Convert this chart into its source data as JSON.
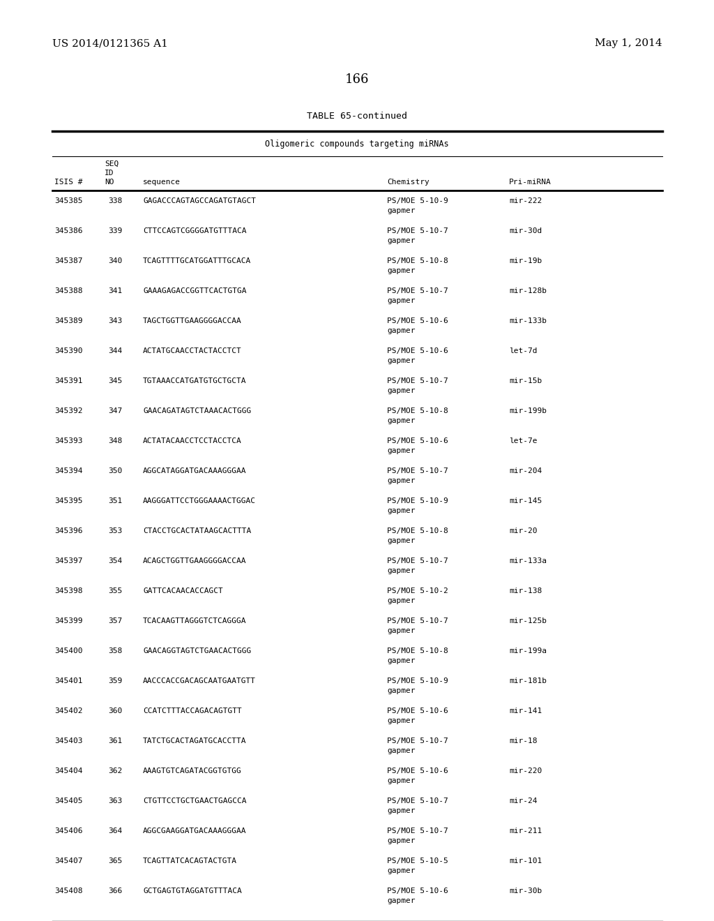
{
  "patent_number": "US 2014/0121365 A1",
  "patent_date": "May 1, 2014",
  "page_number": "166",
  "table_title": "TABLE 65-continued",
  "table_subtitle": "Oligomeric compounds targeting miRNAs",
  "rows": [
    [
      "345385",
      "338",
      "GAGACCCAGTAGCCAGATGTAGCT",
      "PS/MOE 5-10-9",
      "gapmer",
      "mir-222"
    ],
    [
      "345386",
      "339",
      "CTTCCAGTCGGGGATGTTTACA",
      "PS/MOE 5-10-7",
      "gapmer",
      "mir-30d"
    ],
    [
      "345387",
      "340",
      "TCAGTTTTGCATGGATTTGCACA",
      "PS/MOE 5-10-8",
      "gapmer",
      "mir-19b"
    ],
    [
      "345388",
      "341",
      "GAAAGAGACCGGTTCACTGTGA",
      "PS/MOE 5-10-7",
      "gapmer",
      "mir-128b"
    ],
    [
      "345389",
      "343",
      "TAGCTGGTTGAAGGGGACCAA",
      "PS/MOE 5-10-6",
      "gapmer",
      "mir-133b"
    ],
    [
      "345390",
      "344",
      "ACTATGCAACCTACTACCTCT",
      "PS/MOE 5-10-6",
      "gapmer",
      "let-7d"
    ],
    [
      "345391",
      "345",
      "TGTAAACCATGATGTGCTGCTA",
      "PS/MOE 5-10-7",
      "gapmer",
      "mir-15b"
    ],
    [
      "345392",
      "347",
      "GAACAGATAGTCTAAACACTGGG",
      "PS/MOE 5-10-8",
      "gapmer",
      "mir-199b"
    ],
    [
      "345393",
      "348",
      "ACTATACAACCTCCTACCTCA",
      "PS/MOE 5-10-6",
      "gapmer",
      "let-7e"
    ],
    [
      "345394",
      "350",
      "AGGCATAGGATGACAAAGGGAA",
      "PS/MOE 5-10-7",
      "gapmer",
      "mir-204"
    ],
    [
      "345395",
      "351",
      "AAGGGATTCCTGGGAAAACTGGAC",
      "PS/MOE 5-10-9",
      "gapmer",
      "mir-145"
    ],
    [
      "345396",
      "353",
      "CTACCTGCACTATAAGCACTTTA",
      "PS/MOE 5-10-8",
      "gapmer",
      "mir-20"
    ],
    [
      "345397",
      "354",
      "ACAGCTGGTTGAAGGGGACCAA",
      "PS/MOE 5-10-7",
      "gapmer",
      "mir-133a"
    ],
    [
      "345398",
      "355",
      "GATTCACAACACCAGCT",
      "PS/MOE 5-10-2",
      "gapmer",
      "mir-138"
    ],
    [
      "345399",
      "357",
      "TCACAAGTTAGGGTCTCAGGGA",
      "PS/MOE 5-10-7",
      "gapmer",
      "mir-125b"
    ],
    [
      "345400",
      "358",
      "GAACAGGTAGTCTGAACACTGGG",
      "PS/MOE 5-10-8",
      "gapmer",
      "mir-199a"
    ],
    [
      "345401",
      "359",
      "AACCCACCGACAGCAATGAATGTT",
      "PS/MOE 5-10-9",
      "gapmer",
      "mir-181b"
    ],
    [
      "345402",
      "360",
      "CCATCTTTACCAGACAGTGTT",
      "PS/MOE 5-10-6",
      "gapmer",
      "mir-141"
    ],
    [
      "345403",
      "361",
      "TATCTGCACTAGATGCACCTTA",
      "PS/MOE 5-10-7",
      "gapmer",
      "mir-18"
    ],
    [
      "345404",
      "362",
      "AAAGTGTCAGATACGGTGTGG",
      "PS/MOE 5-10-6",
      "gapmer",
      "mir-220"
    ],
    [
      "345405",
      "363",
      "CTGTTCCTGCTGAACTGAGCCA",
      "PS/MOE 5-10-7",
      "gapmer",
      "mir-24"
    ],
    [
      "345406",
      "364",
      "AGGCGAAGGATGACAAAGGGAA",
      "PS/MOE 5-10-7",
      "gapmer",
      "mir-211"
    ],
    [
      "345407",
      "365",
      "TCAGTTATCACAGTACTGTA",
      "PS/MOE 5-10-5",
      "gapmer",
      "mir-101"
    ],
    [
      "345408",
      "366",
      "GCTGAGTGTAGGATGTTTACA",
      "PS/MOE 5-10-6",
      "gapmer",
      "mir-30b"
    ]
  ],
  "bg_color": "#ffffff",
  "text_color": "#000000"
}
